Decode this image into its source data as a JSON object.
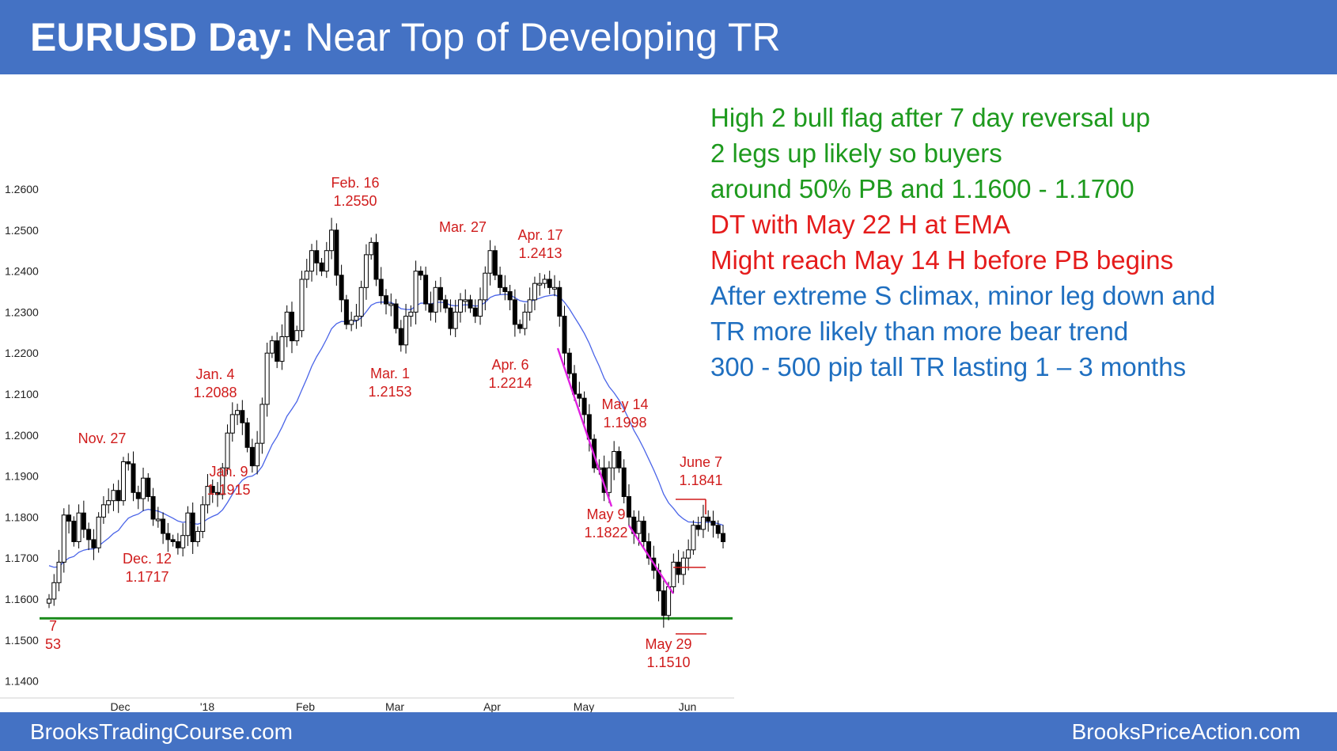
{
  "header": {
    "title_bold": "EURUSD Day:",
    "title_rest": "Near Top of Developing TR"
  },
  "footer": {
    "left": "BrooksTradingCourse.com",
    "right": "BrooksPriceAction.com"
  },
  "colors": {
    "banner": "#4472c4",
    "green": "#1e9a1e",
    "red": "#e51b1b",
    "blue": "#1f6fc0",
    "annotation": "#d01c1c",
    "ema": "#4a64e8",
    "trendline": "#e020e0"
  },
  "notes": [
    {
      "text": "High 2 bull flag after 7 day reversal up",
      "color": "#1e9a1e"
    },
    {
      "text": "2 legs up likely so buyers",
      "color": "#1e9a1e"
    },
    {
      "text": "around 50% PB and 1.1600 - 1.1700",
      "color": "#1e9a1e"
    },
    {
      "text": "DT with May 22 H at EMA",
      "color": "#e51b1b"
    },
    {
      "text": "Might reach May 14 H before PB begins",
      "color": "#e51b1b"
    },
    {
      "text": "After extreme S climax, minor leg down and",
      "color": "#1f6fc0"
    },
    {
      "text": "TR more likely than more bear trend",
      "color": "#1f6fc0"
    },
    {
      "text": "300 - 500 pip tall TR lasting 1 – 3 months",
      "color": "#1f6fc0"
    }
  ],
  "chart_data": {
    "type": "candlestick",
    "ylim": [
      1.14,
      1.265
    ],
    "y_ticks": [
      "1.2600",
      "1.2500",
      "1.2400",
      "1.2300",
      "1.2200",
      "1.2100",
      "1.2000",
      "1.1900",
      "1.1800",
      "1.1700",
      "1.1600",
      "1.1500",
      "1.1400"
    ],
    "x_ticks": [
      "Dec",
      "'18",
      "Feb",
      "Mar",
      "Apr",
      "May",
      "Jun"
    ],
    "support_level": 1.1553,
    "closes": [
      1.16,
      1.164,
      1.169,
      1.1805,
      1.179,
      1.174,
      1.181,
      1.177,
      1.1745,
      1.1725,
      1.18,
      1.183,
      1.184,
      1.1865,
      1.184,
      1.1935,
      1.193,
      1.186,
      1.1845,
      1.1895,
      1.185,
      1.1795,
      1.1795,
      1.176,
      1.1745,
      1.174,
      1.1725,
      1.1755,
      1.181,
      1.174,
      1.1765,
      1.183,
      1.1875,
      1.186,
      1.1855,
      1.192,
      1.2005,
      1.205,
      1.206,
      1.203,
      1.197,
      1.1925,
      1.198,
      1.2075,
      1.22,
      1.223,
      1.218,
      1.224,
      1.23,
      1.223,
      1.2255,
      1.238,
      1.24,
      1.245,
      1.242,
      1.24,
      1.245,
      1.25,
      1.239,
      1.233,
      1.227,
      1.228,
      1.229,
      1.236,
      1.244,
      1.247,
      1.238,
      1.234,
      1.232,
      1.232,
      1.226,
      1.222,
      1.229,
      1.23,
      1.24,
      1.239,
      1.232,
      1.23,
      1.236,
      1.233,
      1.231,
      1.226,
      1.23,
      1.233,
      1.233,
      1.231,
      1.229,
      1.233,
      1.2395,
      1.245,
      1.239,
      1.236,
      1.235,
      1.233,
      1.227,
      1.226,
      1.23,
      1.233,
      1.237,
      1.237,
      1.238,
      1.236,
      1.236,
      1.229,
      1.22,
      1.215,
      1.21,
      1.209,
      1.205,
      1.199,
      1.192,
      1.192,
      1.186,
      1.192,
      1.196,
      1.192,
      1.185,
      1.18,
      1.176,
      1.179,
      1.174,
      1.17,
      1.167,
      1.162,
      1.156,
      1.163,
      1.169,
      1.166,
      1.17,
      1.172,
      1.178,
      1.177,
      1.18,
      1.179,
      1.178,
      1.176,
      1.174
    ],
    "annotations": [
      {
        "lines": [
          "Nov. 27"
        ]
      },
      {
        "lines": [
          "Dec. 12",
          "1.1717"
        ]
      },
      {
        "lines": [
          "Jan. 4",
          "1.2088"
        ]
      },
      {
        "lines": [
          "Jan. 9",
          "1.1915"
        ]
      },
      {
        "lines": [
          "Feb. 16",
          "1.2550"
        ]
      },
      {
        "lines": [
          "Mar. 1",
          "1.2153"
        ]
      },
      {
        "lines": [
          "Mar. 27"
        ]
      },
      {
        "lines": [
          "Apr. 17",
          "1.2413"
        ]
      },
      {
        "lines": [
          "Apr. 6",
          "1.2214"
        ]
      },
      {
        "lines": [
          "May 14",
          "1.1998"
        ]
      },
      {
        "lines": [
          "May 9",
          "1.1822"
        ]
      },
      {
        "lines": [
          "June 7",
          "1.1841"
        ]
      },
      {
        "lines": [
          "May 29",
          "1.1510"
        ]
      },
      {
        "lines": [
          "7",
          "53"
        ]
      }
    ]
  }
}
